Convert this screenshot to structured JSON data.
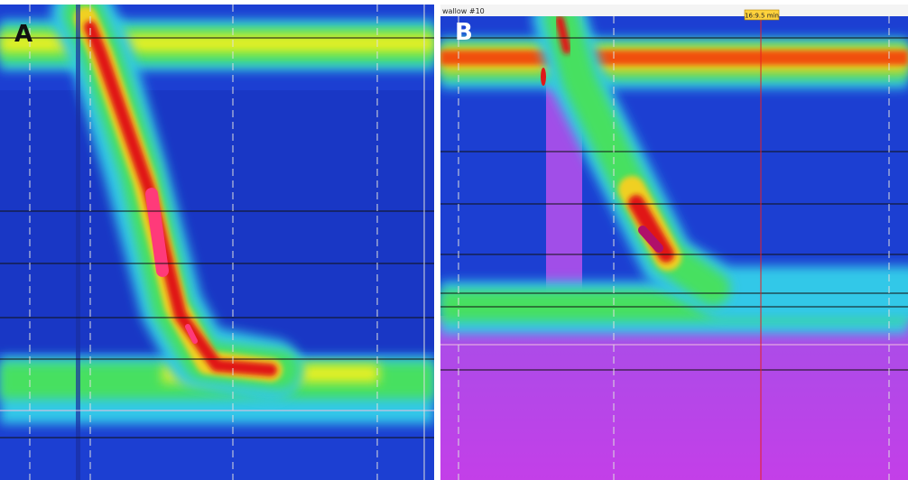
{
  "panels": [
    {
      "label": "A"
    },
    {
      "label": "B",
      "header": "wallow #10",
      "marker": "16:9.5 min"
    }
  ]
}
